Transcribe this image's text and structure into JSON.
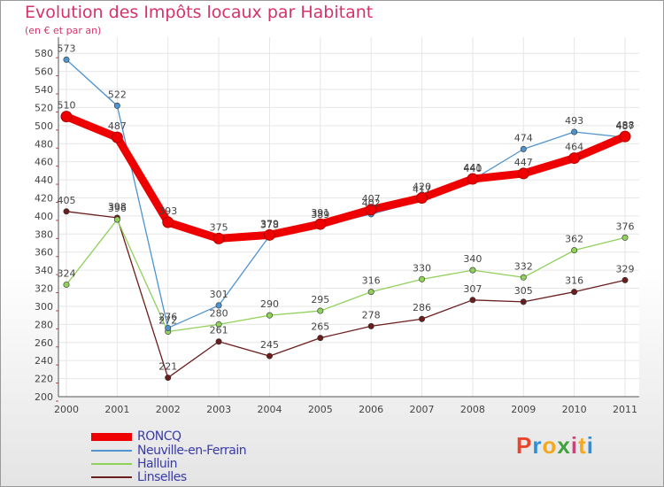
{
  "chart_data": {
    "type": "line",
    "title": "Evolution des Impôts locaux par Habitant",
    "subtitle": "(en € et par an)",
    "categories": [
      "2000",
      "2001",
      "2002",
      "2003",
      "2004",
      "2005",
      "2006",
      "2007",
      "2008",
      "2009",
      "2010",
      "2011"
    ],
    "ylim": [
      200,
      590
    ],
    "yticks": [
      200,
      220,
      240,
      260,
      280,
      300,
      320,
      340,
      360,
      380,
      400,
      420,
      440,
      460,
      480,
      500,
      520,
      540,
      560,
      580
    ],
    "series": [
      {
        "name": "RONCQ",
        "color": "#ee0000",
        "values": [
          510,
          487,
          393,
          375,
          379,
          391,
          407,
          420,
          441,
          447,
          464,
          488
        ]
      },
      {
        "name": "Neuville-en-Ferrain",
        "color": "#4f93cf",
        "values": [
          573,
          522,
          276,
          301,
          378,
          389,
          402,
          417,
          440,
          474,
          493,
          487
        ]
      },
      {
        "name": "Halluin",
        "color": "#8fd15a",
        "values": [
          324,
          396,
          272,
          280,
          290,
          295,
          316,
          330,
          340,
          332,
          362,
          376
        ]
      },
      {
        "name": "Linselles",
        "color": "#6b1d1d",
        "values": [
          405,
          398,
          221,
          261,
          245,
          265,
          278,
          286,
          307,
          305,
          316,
          329
        ]
      }
    ]
  },
  "logo": {
    "letters": [
      "P",
      "r",
      "o",
      "x",
      "i",
      "t",
      "i"
    ],
    "colors": [
      "#e8452c",
      "#2d8fd8",
      "#f2a91f",
      "#3fa23f",
      "#d83a7c",
      "#f2a91f",
      "#2d8fd8"
    ]
  }
}
